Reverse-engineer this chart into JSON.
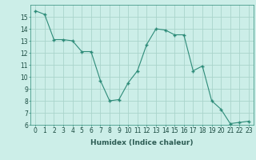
{
  "x": [
    0,
    1,
    2,
    3,
    4,
    5,
    6,
    7,
    8,
    9,
    10,
    11,
    12,
    13,
    14,
    15,
    16,
    17,
    18,
    19,
    20,
    21,
    22,
    23
  ],
  "y": [
    15.5,
    15.2,
    13.1,
    13.1,
    13.0,
    12.1,
    12.1,
    9.7,
    8.0,
    8.1,
    9.5,
    10.5,
    12.7,
    14.0,
    13.9,
    13.5,
    13.5,
    10.5,
    10.9,
    8.0,
    7.3,
    6.1,
    6.2,
    6.3
  ],
  "line_color": "#2d8b78",
  "bg_color": "#cceee8",
  "grid_color": "#aad4cc",
  "xlabel": "Humidex (Indice chaleur)",
  "ylim": [
    6,
    16
  ],
  "xlim_min": -0.5,
  "xlim_max": 23.5,
  "yticks": [
    6,
    7,
    8,
    9,
    10,
    11,
    12,
    13,
    14,
    15
  ],
  "xticks": [
    0,
    1,
    2,
    3,
    4,
    5,
    6,
    7,
    8,
    9,
    10,
    11,
    12,
    13,
    14,
    15,
    16,
    17,
    18,
    19,
    20,
    21,
    22,
    23
  ],
  "xlabel_fontsize": 6.5,
  "tick_fontsize": 5.5
}
